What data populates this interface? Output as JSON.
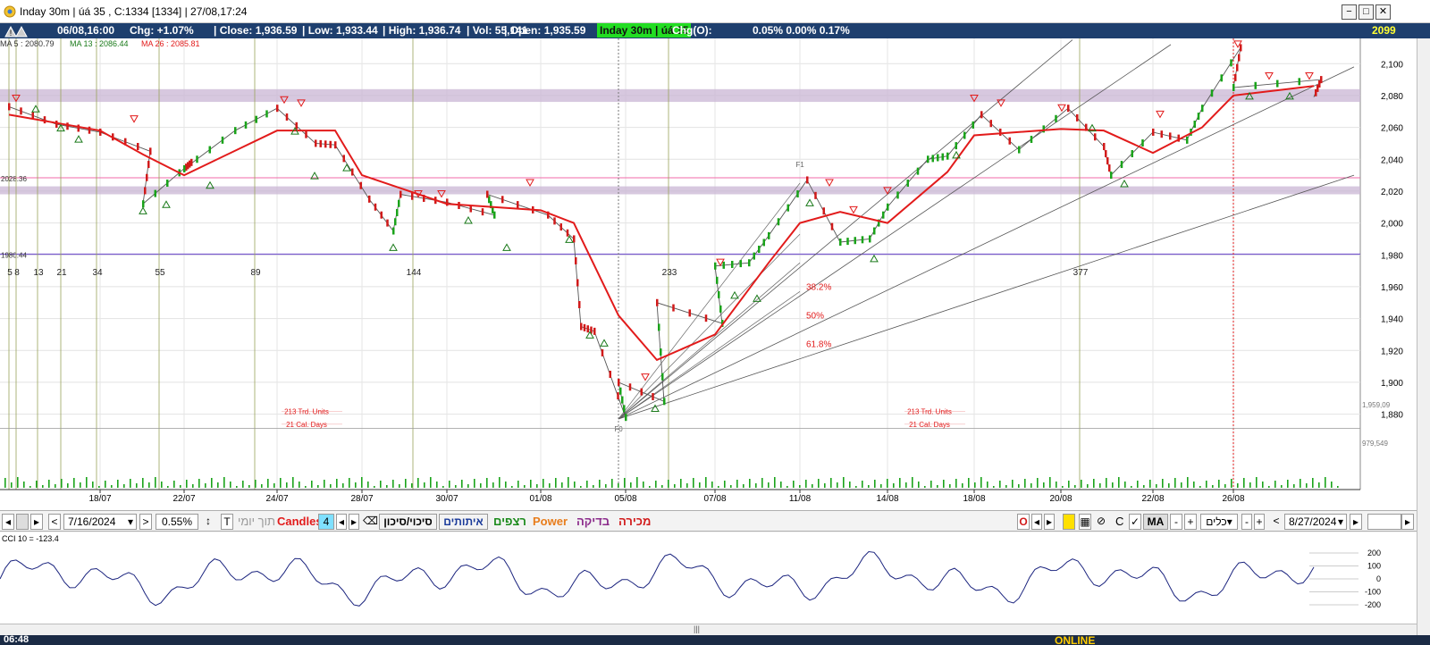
{
  "window": {
    "title": "Inday 30m | úá 35 , C:1334 [1334]  | 27/08,17:24",
    "buttons": [
      "−",
      "□",
      "✕"
    ]
  },
  "infobar": {
    "datetime": "06/08,16:00",
    "chg": "Chg: +1.07%",
    "close": "| Close: 1,936.59",
    "low": "| Low: 1,933.44",
    "high": "| High: 1,936.74",
    "vol": "| Vol: 55,141",
    "open": "| Open: 1,935.59",
    "instrument": "Inday 30m | úá 35",
    "chgo_label": "Chg(O):",
    "chgo_values": "0.05%  0.00%  0.17%",
    "last": "2099"
  },
  "chart_data": {
    "type": "line",
    "title": "Inday 30m | úá 35",
    "legend": [
      {
        "name": "MA 5 : 2080.79",
        "color": "#333333"
      },
      {
        "name": "MA 13 : 2086.44",
        "color": "#1a7a1a"
      },
      {
        "name": "MA 26 : 2085.81",
        "color": "#e21b1b"
      }
    ],
    "x_ticks": [
      "18/07",
      "22/07",
      "24/07",
      "28/07",
      "30/07",
      "01/08",
      "05/08",
      "07/08",
      "11/08",
      "14/08",
      "18/08",
      "20/08",
      "22/08",
      "26/08"
    ],
    "y_ticks": [
      "2,100",
      "2,080",
      "2,060",
      "2,040",
      "2,020",
      "2,000",
      "1,980",
      "1,960",
      "1,940",
      "1,920",
      "1,900",
      "1,880"
    ],
    "ylim": [
      1868,
      2108
    ],
    "volume_scale_labels": [
      "1,959,09",
      "979,549"
    ],
    "fibonacci_time": [
      "5",
      "8",
      "13",
      "21",
      "34",
      "55",
      "89",
      "144",
      "233",
      "377"
    ],
    "fib_retracement": [
      "38.2%",
      "50%",
      "61.8%"
    ],
    "level_labels": [
      {
        "text": "2028.36",
        "value": 2028.36
      },
      {
        "text": "1980.44",
        "value": 1980.44
      }
    ],
    "zones": [
      [
        2076,
        2084
      ],
      [
        2018,
        2023
      ]
    ],
    "annotations": [
      "213 Trd. Units",
      "21 Cal. Days",
      "213 Trd. Units",
      "21 Cal. Days",
      "F1",
      "F0"
    ],
    "price_path": [
      {
        "x": "16/07",
        "y": 2073
      },
      {
        "x": "17/07",
        "y": 2062
      },
      {
        "x": "18/07",
        "y": 2057
      },
      {
        "x": "19/07",
        "y": 2045
      },
      {
        "x": "19/07",
        "y": 2012
      },
      {
        "x": "22/07",
        "y": 2038
      },
      {
        "x": "22/07",
        "y": 2034
      },
      {
        "x": "23/07",
        "y": 2058
      },
      {
        "x": "24/07",
        "y": 2072
      },
      {
        "x": "25/07",
        "y": 2050
      },
      {
        "x": "26/07",
        "y": 2049
      },
      {
        "x": "28/07",
        "y": 2015
      },
      {
        "x": "29/07",
        "y": 1995
      },
      {
        "x": "29/07",
        "y": 2018
      },
      {
        "x": "30/07",
        "y": 2013
      },
      {
        "x": "31/07",
        "y": 2005
      },
      {
        "x": "31/07",
        "y": 2018
      },
      {
        "x": "01/08",
        "y": 2005
      },
      {
        "x": "02/08",
        "y": 1990
      },
      {
        "x": "02/08",
        "y": 1935
      },
      {
        "x": "04/08",
        "y": 1932
      },
      {
        "x": "05/08",
        "y": 1878
      },
      {
        "x": "05/08",
        "y": 1900
      },
      {
        "x": "06/08",
        "y": 1888
      },
      {
        "x": "06/08",
        "y": 1950
      },
      {
        "x": "07/08",
        "y": 1937
      },
      {
        "x": "07/08",
        "y": 1973
      },
      {
        "x": "08/08",
        "y": 1975
      },
      {
        "x": "09/08",
        "y": 1992
      },
      {
        "x": "11/08",
        "y": 2027
      },
      {
        "x": "12/08",
        "y": 1988
      },
      {
        "x": "13/08",
        "y": 1990
      },
      {
        "x": "14/08",
        "y": 2010
      },
      {
        "x": "15/08",
        "y": 2040
      },
      {
        "x": "16/08",
        "y": 2042
      },
      {
        "x": "18/08",
        "y": 2068
      },
      {
        "x": "19/08",
        "y": 2046
      },
      {
        "x": "20/08",
        "y": 2072
      },
      {
        "x": "21/08",
        "y": 2048
      },
      {
        "x": "21/08",
        "y": 2030
      },
      {
        "x": "22/08",
        "y": 2057
      },
      {
        "x": "23/08",
        "y": 2052
      },
      {
        "x": "25/08",
        "y": 2072
      },
      {
        "x": "26/08",
        "y": 2110
      },
      {
        "x": "26/08",
        "y": 2085
      },
      {
        "x": "27/08",
        "y": 2090
      },
      {
        "x": "27/08",
        "y": 2079
      }
    ],
    "ma26_path": [
      {
        "x": "16/07",
        "y": 2068
      },
      {
        "x": "18/07",
        "y": 2058
      },
      {
        "x": "19/07",
        "y": 2043
      },
      {
        "x": "22/07",
        "y": 2030
      },
      {
        "x": "24/07",
        "y": 2058
      },
      {
        "x": "26/07",
        "y": 2058
      },
      {
        "x": "28/07",
        "y": 2030
      },
      {
        "x": "30/07",
        "y": 2012
      },
      {
        "x": "01/08",
        "y": 2008
      },
      {
        "x": "02/08",
        "y": 2000
      },
      {
        "x": "05/08",
        "y": 1942
      },
      {
        "x": "06/08",
        "y": 1914
      },
      {
        "x": "07/08",
        "y": 1930
      },
      {
        "x": "09/08",
        "y": 1975
      },
      {
        "x": "11/08",
        "y": 2000
      },
      {
        "x": "12/08",
        "y": 2007
      },
      {
        "x": "14/08",
        "y": 2000
      },
      {
        "x": "16/08",
        "y": 2032
      },
      {
        "x": "18/08",
        "y": 2055
      },
      {
        "x": "20/08",
        "y": 2059
      },
      {
        "x": "21/08",
        "y": 2058
      },
      {
        "x": "22/08",
        "y": 2044
      },
      {
        "x": "25/08",
        "y": 2060
      },
      {
        "x": "26/08",
        "y": 2080
      },
      {
        "x": "27/08",
        "y": 2086
      }
    ]
  },
  "toolbar": {
    "date_from": "7/16/2024",
    "zoom": "0.55%",
    "view_daily": "תוך יומי",
    "candles_label": "Candles",
    "candles_value": "4",
    "tab_risk": "סיכוי/סיכון",
    "tab_signals": "איתותים",
    "tab_continuous": "רצפים",
    "tab_power": "Power",
    "tab_check": "בדיקה",
    "tab_sale": "מכירה",
    "o_label": "O",
    "c_label": "C",
    "ma_label": "MA",
    "plus_label": "+",
    "minus_label": "-",
    "tools_select": "כלים",
    "date_to": "8/27/2024",
    "colors": {
      "power": "#e87d1c",
      "continuous": "#1a8a1a",
      "sale": "#d11a1a",
      "candles": "#e21b1b"
    }
  },
  "cci": {
    "label": "CCI 10 = -123.4",
    "y_ticks": [
      "200",
      "100",
      "0",
      "-100",
      "-200"
    ]
  },
  "taskbar": {
    "clock": "06:48",
    "status": "ONLINE"
  }
}
